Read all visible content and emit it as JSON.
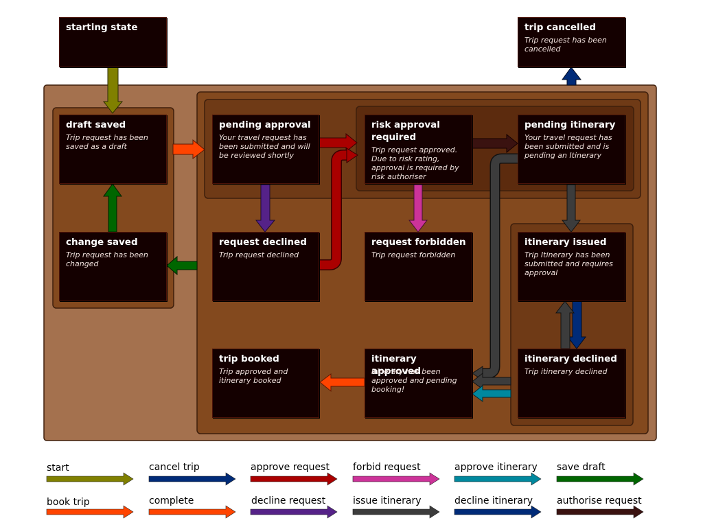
{
  "diagram": {
    "states": {
      "starting_state": {
        "title": "starting state",
        "description": ""
      },
      "trip_cancelled": {
        "title": "trip cancelled",
        "description": "Trip request has been cancelled"
      },
      "draft_saved": {
        "title": "draft saved",
        "description": "Trip request has been saved as a draft"
      },
      "change_saved": {
        "title": "change saved",
        "description": "Trip request has been changed"
      },
      "pending_approval": {
        "title": "pending approval",
        "description": "Your travel request has been submitted and will be reviewed shortly"
      },
      "risk_approval_required": {
        "title": "risk approval required",
        "description": "Trip request approved. Due to risk rating, approval is required by risk authoriser"
      },
      "pending_itinerary": {
        "title": "pending itinerary",
        "description": "Your travel request has been submitted and is pending an Itinerary"
      },
      "request_declined": {
        "title": "request declined",
        "description": "Trip request declined"
      },
      "request_forbidden": {
        "title": "request forbidden",
        "description": "Trip request forbidden"
      },
      "itinerary_issued": {
        "title": "itinerary issued",
        "description": "Trip Itinerary has been submitted and requires approval"
      },
      "trip_booked": {
        "title": "trip booked",
        "description": "Trip approved and itinerary booked"
      },
      "itinerary_approved": {
        "title": "itinerary approved",
        "description": "Itinerary has been approved and pending booking!"
      },
      "itinerary_declined": {
        "title": "itinerary declined",
        "description": "Trip itinerary declined"
      }
    },
    "legend": [
      {
        "label": "start",
        "color": "#808000"
      },
      {
        "label": "cancel trip",
        "color": "#002b78"
      },
      {
        "label": "approve request",
        "color": "#aa0000"
      },
      {
        "label": "forbid request",
        "color": "#cc3399"
      },
      {
        "label": "approve itinerary",
        "color": "#00889e"
      },
      {
        "label": "save draft",
        "color": "#006600"
      },
      {
        "label": "book trip",
        "color": "#ff4400"
      },
      {
        "label": "complete",
        "color": "#ff4400"
      },
      {
        "label": "decline request",
        "color": "#552288"
      },
      {
        "label": "issue itinerary",
        "color": "#3c3c3c"
      },
      {
        "label": "decline itinerary",
        "color": "#002b78"
      },
      {
        "label": "authorise request",
        "color": "#3a1210"
      }
    ]
  }
}
